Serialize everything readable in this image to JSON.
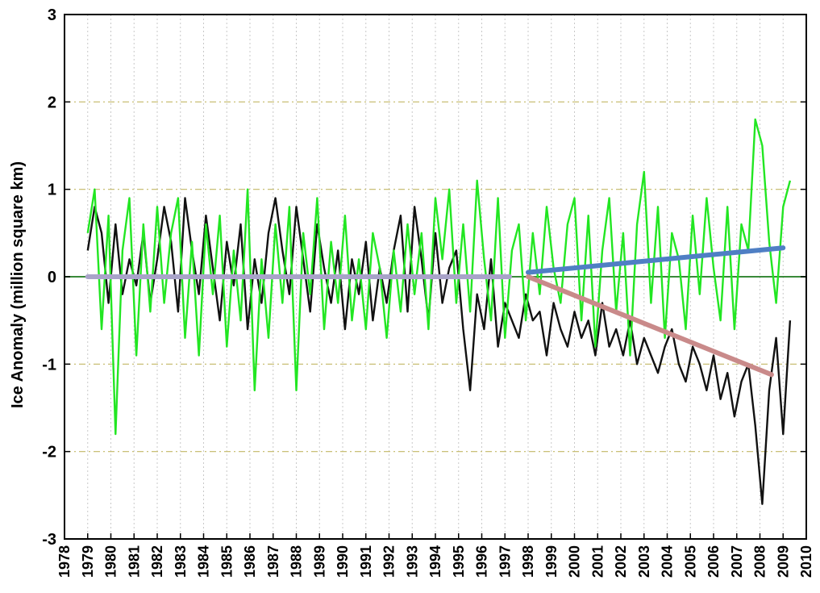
{
  "chart_data": {
    "type": "line",
    "title": "",
    "xlabel": "",
    "ylabel": "Ice Anomaly (million square km)",
    "xlim": [
      1978,
      2010
    ],
    "ylim": [
      -3,
      3
    ],
    "y_ticks": [
      3,
      2,
      1,
      0,
      -1,
      -2,
      -3
    ],
    "y_tick_labels": [
      "3",
      "2",
      "1",
      "0",
      "-1",
      "-2",
      "-3"
    ],
    "x_ticks": [
      "1978",
      "1979",
      "1980",
      "1981",
      "1982",
      "1983",
      "1984",
      "1985",
      "1986",
      "1987",
      "1988",
      "1989",
      "1990",
      "1991",
      "1992",
      "1993",
      "1994",
      "1995",
      "1996",
      "1997",
      "1998",
      "1999",
      "2000",
      "2001",
      "2002",
      "2003",
      "2004",
      "2005",
      "2006",
      "2007",
      "2008",
      "2009",
      "2010"
    ],
    "grid": {
      "vertical": true,
      "horizontal": true
    },
    "colors": {
      "black_series": "#111111",
      "green_series": "#22e622",
      "zero_line": "#3a8a3a",
      "baseline_trend": "#a9a3c9",
      "blue_trend": "#4f7fc4",
      "red_trend": "#c98a8a"
    },
    "series": [
      {
        "style": "black",
        "x": [
          1979.0,
          1979.3,
          1979.6,
          1979.9,
          1980.2,
          1980.5,
          1980.8,
          1981.1,
          1981.4,
          1981.7,
          1982.0,
          1982.3,
          1982.6,
          1982.9,
          1983.2,
          1983.5,
          1983.8,
          1984.1,
          1984.4,
          1984.7,
          1985.0,
          1985.3,
          1985.6,
          1985.9,
          1986.2,
          1986.5,
          1986.8,
          1987.1,
          1987.4,
          1987.7,
          1988.0,
          1988.3,
          1988.6,
          1988.9,
          1989.2,
          1989.5,
          1989.8,
          1990.1,
          1990.4,
          1990.7,
          1991.0,
          1991.3,
          1991.6,
          1991.9,
          1992.2,
          1992.5,
          1992.8,
          1993.1,
          1993.4,
          1993.7,
          1994.0,
          1994.3,
          1994.6,
          1994.9,
          1995.2,
          1995.5,
          1995.8,
          1996.1,
          1996.4,
          1996.7,
          1997.0,
          1997.3,
          1997.6,
          1997.9,
          1998.2,
          1998.5,
          1998.8,
          1999.1,
          1999.4,
          1999.7,
          2000.0,
          2000.3,
          2000.6,
          2000.9,
          2001.2,
          2001.5,
          2001.8,
          2002.1,
          2002.4,
          2002.7,
          2003.0,
          2003.3,
          2003.6,
          2003.9,
          2004.2,
          2004.5,
          2004.8,
          2005.1,
          2005.4,
          2005.7,
          2006.0,
          2006.3,
          2006.6,
          2006.9,
          2007.2,
          2007.5,
          2007.8,
          2008.1,
          2008.4,
          2008.7,
          2009.0,
          2009.3
        ],
        "y": [
          0.3,
          0.8,
          0.5,
          -0.3,
          0.6,
          -0.2,
          0.2,
          -0.1,
          0.5,
          -0.3,
          0.2,
          0.8,
          0.4,
          -0.4,
          0.9,
          0.3,
          -0.2,
          0.7,
          0.1,
          -0.5,
          0.4,
          -0.1,
          0.6,
          -0.6,
          0.2,
          -0.3,
          0.5,
          0.9,
          0.3,
          -0.2,
          0.8,
          0.2,
          -0.4,
          0.6,
          0.1,
          -0.3,
          0.3,
          -0.6,
          0.2,
          -0.2,
          0.4,
          -0.5,
          0.1,
          -0.3,
          0.3,
          0.7,
          -0.4,
          0.8,
          0.2,
          -0.5,
          0.5,
          -0.3,
          0.1,
          0.3,
          -0.6,
          -1.3,
          -0.2,
          -0.6,
          0.2,
          -0.8,
          -0.3,
          -0.5,
          -0.7,
          -0.2,
          -0.5,
          -0.4,
          -0.9,
          -0.3,
          -0.6,
          -0.8,
          -0.4,
          -0.7,
          -0.5,
          -0.9,
          -0.3,
          -0.8,
          -0.6,
          -0.9,
          -0.5,
          -1.0,
          -0.7,
          -0.9,
          -1.1,
          -0.8,
          -0.6,
          -1.0,
          -1.2,
          -0.8,
          -1.0,
          -1.3,
          -0.9,
          -1.4,
          -1.1,
          -1.6,
          -1.2,
          -1.0,
          -1.7,
          -2.6,
          -1.3,
          -0.7,
          -1.8,
          -0.5
        ]
      },
      {
        "style": "green",
        "x": [
          1979.0,
          1979.3,
          1979.6,
          1979.9,
          1980.2,
          1980.5,
          1980.8,
          1981.1,
          1981.4,
          1981.7,
          1982.0,
          1982.3,
          1982.6,
          1982.9,
          1983.2,
          1983.5,
          1983.8,
          1984.1,
          1984.4,
          1984.7,
          1985.0,
          1985.3,
          1985.6,
          1985.9,
          1986.2,
          1986.5,
          1986.8,
          1987.1,
          1987.4,
          1987.7,
          1988.0,
          1988.3,
          1988.6,
          1988.9,
          1989.2,
          1989.5,
          1989.8,
          1990.1,
          1990.4,
          1990.7,
          1991.0,
          1991.3,
          1991.6,
          1991.9,
          1992.2,
          1992.5,
          1992.8,
          1993.1,
          1993.4,
          1993.7,
          1994.0,
          1994.3,
          1994.6,
          1994.9,
          1995.2,
          1995.5,
          1995.8,
          1996.1,
          1996.4,
          1996.7,
          1997.0,
          1997.3,
          1997.6,
          1997.9,
          1998.2,
          1998.5,
          1998.8,
          1999.1,
          1999.4,
          1999.7,
          2000.0,
          2000.3,
          2000.6,
          2000.9,
          2001.2,
          2001.5,
          2001.8,
          2002.1,
          2002.4,
          2002.7,
          2003.0,
          2003.3,
          2003.6,
          2003.9,
          2004.2,
          2004.5,
          2004.8,
          2005.1,
          2005.4,
          2005.7,
          2006.0,
          2006.3,
          2006.6,
          2006.9,
          2007.2,
          2007.5,
          2007.8,
          2008.1,
          2008.4,
          2008.7,
          2009.0,
          2009.3
        ],
        "y": [
          0.5,
          1.0,
          -0.6,
          0.7,
          -1.8,
          0.3,
          0.9,
          -0.9,
          0.6,
          -0.4,
          0.8,
          -0.3,
          0.5,
          0.9,
          -0.7,
          0.4,
          -0.9,
          0.6,
          -0.2,
          0.7,
          -0.8,
          0.3,
          -0.5,
          1.0,
          -1.3,
          0.2,
          -0.7,
          0.6,
          -0.3,
          0.8,
          -1.3,
          0.5,
          -0.2,
          0.9,
          -0.6,
          0.4,
          -0.3,
          0.7,
          -0.5,
          0.2,
          -0.6,
          0.5,
          0.1,
          -0.7,
          0.3,
          -0.4,
          0.6,
          -0.2,
          0.5,
          -0.6,
          0.9,
          0.2,
          1.0,
          -0.3,
          0.6,
          -0.4,
          1.1,
          0.2,
          -0.5,
          0.9,
          -0.7,
          0.3,
          0.6,
          -0.5,
          0.5,
          -0.2,
          0.8,
          0.1,
          -0.3,
          0.6,
          0.9,
          -0.5,
          0.7,
          -0.8,
          0.3,
          0.9,
          -0.4,
          0.5,
          -0.9,
          0.6,
          1.2,
          -0.3,
          0.8,
          -0.7,
          0.5,
          0.2,
          -0.6,
          0.7,
          -0.2,
          0.9,
          0.1,
          -0.5,
          0.8,
          -0.6,
          0.6,
          0.3,
          1.8,
          1.5,
          0.4,
          -0.3,
          0.8,
          1.1
        ]
      }
    ],
    "trend_lines": [
      {
        "style": "baseline",
        "x": [
          1979.0,
          1997.2
        ],
        "y": [
          0.0,
          0.0
        ]
      },
      {
        "style": "blue",
        "x": [
          1998.0,
          2009.0
        ],
        "y": [
          0.05,
          0.33
        ]
      },
      {
        "style": "red",
        "x": [
          1998.0,
          2008.5
        ],
        "y": [
          0.0,
          -1.12
        ]
      }
    ]
  }
}
